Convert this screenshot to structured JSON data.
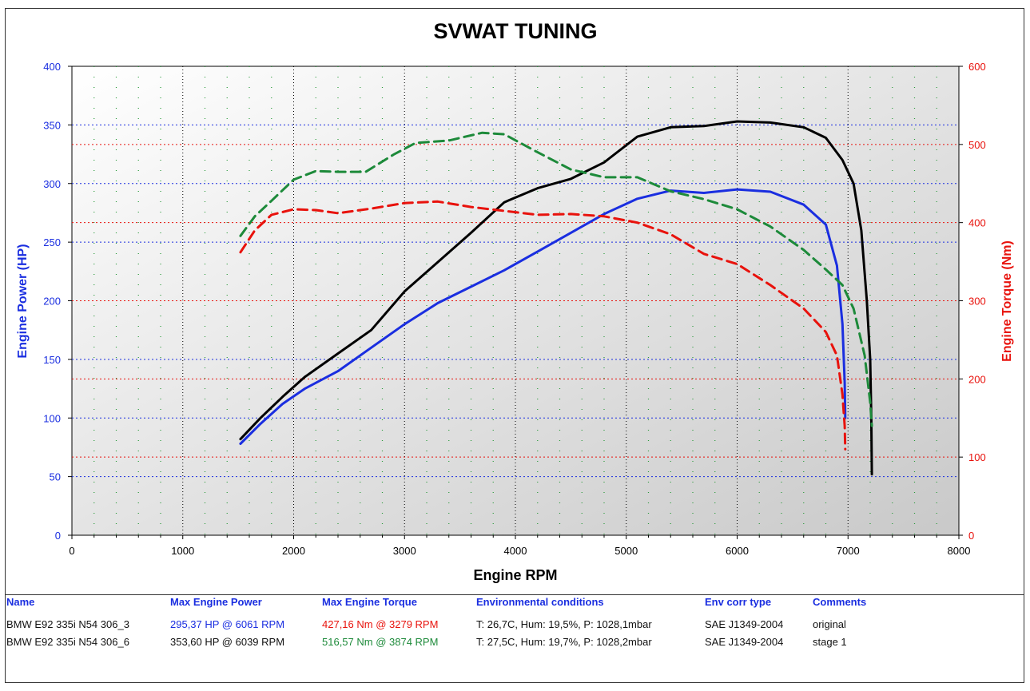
{
  "chart_data": {
    "type": "line",
    "title": "SVWAT TUNING",
    "xlabel": "Engine RPM",
    "ylabel_left": "Engine Power (HP)",
    "ylabel_right": "Engine Torque (Nm)",
    "xlim": [
      0,
      8000
    ],
    "ylim_left": [
      0,
      400
    ],
    "ylim_right": [
      0,
      600
    ],
    "x_ticks": [
      0,
      1000,
      2000,
      3000,
      4000,
      5000,
      6000,
      7000,
      8000
    ],
    "y_ticks_left": [
      0,
      50,
      100,
      150,
      200,
      250,
      300,
      350,
      400
    ],
    "y_ticks_right": [
      0,
      100,
      200,
      300,
      400,
      500,
      600
    ],
    "grid": true,
    "series": [
      {
        "name": "BMW E92 335i N54 306_3",
        "measure": "power",
        "axis": "left",
        "color": "#1a2ee0",
        "dash": false,
        "x": [
          1520,
          1700,
          1900,
          2100,
          2400,
          2700,
          3000,
          3300,
          3600,
          3900,
          4200,
          4500,
          4800,
          5100,
          5400,
          5700,
          6000,
          6300,
          6600,
          6800,
          6900,
          6950,
          6970,
          6975
        ],
        "y": [
          78,
          95,
          112,
          125,
          140,
          160,
          180,
          198,
          212,
          226,
          242,
          258,
          274,
          287,
          294,
          292,
          295,
          293,
          282,
          265,
          230,
          180,
          130,
          100
        ]
      },
      {
        "name": "BMW E92 335i N54 306_6",
        "measure": "power",
        "axis": "left",
        "color": "#000000",
        "dash": false,
        "x": [
          1520,
          1700,
          1900,
          2100,
          2400,
          2700,
          3000,
          3300,
          3600,
          3900,
          4200,
          4500,
          4800,
          5100,
          5400,
          5700,
          6000,
          6300,
          6600,
          6800,
          6950,
          7050,
          7120,
          7170,
          7200,
          7210,
          7215
        ],
        "y": [
          82,
          100,
          118,
          135,
          155,
          175,
          208,
          233,
          258,
          284,
          296,
          304,
          318,
          340,
          348,
          349,
          353,
          352,
          348,
          339,
          320,
          300,
          260,
          200,
          150,
          100,
          52
        ]
      },
      {
        "name": "BMW E92 335i N54 306_3",
        "measure": "torque",
        "axis": "right",
        "color": "#e8120c",
        "dash": true,
        "x": [
          1520,
          1650,
          1800,
          2000,
          2200,
          2400,
          2700,
          3000,
          3300,
          3600,
          3900,
          4200,
          4500,
          4800,
          5100,
          5400,
          5700,
          6000,
          6300,
          6600,
          6800,
          6900,
          6950,
          6970,
          6975
        ],
        "y": [
          362,
          390,
          410,
          417,
          416,
          412,
          418,
          425,
          427,
          420,
          415,
          410,
          411,
          408,
          400,
          385,
          360,
          347,
          320,
          290,
          260,
          230,
          180,
          140,
          110
        ]
      },
      {
        "name": "BMW E92 335i N54 306_6",
        "measure": "torque",
        "axis": "right",
        "color": "#1d8a3a",
        "dash": true,
        "x": [
          1520,
          1650,
          1800,
          2000,
          2200,
          2400,
          2650,
          2900,
          3100,
          3400,
          3700,
          3900,
          4200,
          4500,
          4800,
          5100,
          5400,
          5700,
          6000,
          6300,
          6600,
          6800,
          6950,
          7050,
          7150,
          7200,
          7215
        ],
        "y": [
          383,
          408,
          428,
          455,
          466,
          465,
          465,
          487,
          502,
          505,
          515,
          513,
          490,
          468,
          458,
          458,
          440,
          430,
          417,
          395,
          365,
          340,
          320,
          290,
          230,
          170,
          140
        ]
      }
    ]
  },
  "table": {
    "headers": {
      "name": "Name",
      "power": "Max Engine Power",
      "torque": "Max Engine Torque",
      "env": "Environmental conditions",
      "corr": "Env corr type",
      "comments": "Comments"
    },
    "rows": [
      {
        "name": "BMW E92 335i N54 306_3",
        "power": "295,37 HP @ 6061 RPM",
        "torque": "427,16 Nm @ 3279 RPM",
        "env": "T: 26,7C, Hum: 19,5%, P: 1028,1mbar",
        "corr": "SAE J1349-2004",
        "comments": "original"
      },
      {
        "name": "BMW E92 335i N54 306_6",
        "power": "353,60 HP @ 6039 RPM",
        "torque": "516,57 Nm @ 3874 RPM",
        "env": "T: 27,5C, Hum: 19,7%, P: 1028,2mbar",
        "corr": "SAE J1349-2004",
        "comments": "stage 1"
      }
    ]
  }
}
